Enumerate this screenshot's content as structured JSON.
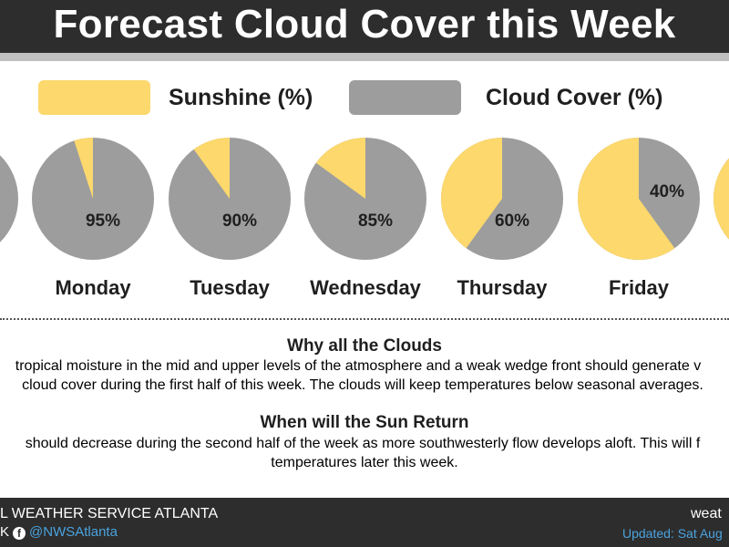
{
  "header": {
    "title": "Forecast Cloud Cover this Week"
  },
  "legend": {
    "sunshine_label": "Sunshine (%)",
    "cloud_label": "Cloud Cover (%)"
  },
  "colors": {
    "sunshine": "#fcd86d",
    "cloud": "#9d9d9d",
    "header_bg": "#2d2d2d",
    "link": "#4aa3df"
  },
  "chart_data": {
    "type": "pie",
    "title": "Forecast Cloud Cover this Week",
    "series": [
      {
        "name": "Sunshine (%)"
      },
      {
        "name": "Cloud Cover (%)"
      }
    ],
    "days": [
      {
        "day": "",
        "cloud": 100,
        "label": ""
      },
      {
        "day": "Monday",
        "cloud": 95,
        "label": "95%"
      },
      {
        "day": "Tuesday",
        "cloud": 90,
        "label": "90%"
      },
      {
        "day": "Wednesday",
        "cloud": 85,
        "label": "85%"
      },
      {
        "day": "Thursday",
        "cloud": 60,
        "label": "60%"
      },
      {
        "day": "Friday",
        "cloud": 40,
        "label": "40%"
      },
      {
        "day": "",
        "cloud": 5,
        "label": ""
      }
    ]
  },
  "info": {
    "why_title": "Why all the Clouds",
    "why_line1": "tropical moisture in the mid and upper levels of the atmosphere and a weak wedge front should generate v",
    "why_line2": "cloud cover during the first half of this week. The clouds will keep temperatures below seasonal averages.",
    "when_title": "When will the Sun Return",
    "when_line1": "should decrease during the second half of the week as more southwesterly flow develops aloft. This will f",
    "when_line2": "temperatures later this week."
  },
  "footer": {
    "org": "L WEATHER SERVICE ATLANTA",
    "social_prefix": "K",
    "handle": "@NWSAtlanta",
    "facebook_icon": "facebook-icon",
    "site": "weat",
    "updated": "Updated: Sat Aug"
  }
}
